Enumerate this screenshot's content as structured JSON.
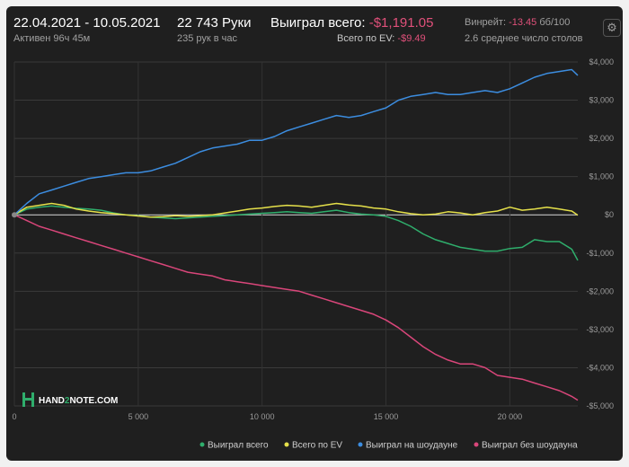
{
  "header": {
    "date_range": "22.04.2021 - 10.05.2021",
    "active": "Активен 96ч 45м",
    "hands": "22 743 Руки",
    "hands_per_hour": "235 рук в час",
    "won_total_label": "Выиграл всего:",
    "won_total_value": "-$1,191.05",
    "ev_total_label": "Всего по EV:",
    "ev_total_value": "-$9.49",
    "winrate_label": "Винрейт:",
    "winrate_value": "-13.45",
    "winrate_unit": "бб/100",
    "avg_tables": "2.6 среднее число столов"
  },
  "logo": {
    "text_a": "HAND",
    "text_b": "2",
    "text_c": "NOTE.COM"
  },
  "chart_data": {
    "type": "line",
    "xlabel": "",
    "ylabel": "",
    "xlim": [
      0,
      22743
    ],
    "ylim": [
      -5000,
      4000
    ],
    "x_ticks": [
      0,
      5000,
      10000,
      15000,
      20000
    ],
    "x_tick_labels": [
      "0",
      "5 000",
      "10 000",
      "15 000",
      "20 000"
    ],
    "y_ticks": [
      4000,
      3000,
      2000,
      1000,
      0,
      -1000,
      -2000,
      -3000,
      -4000,
      -5000
    ],
    "y_tick_labels": [
      "$4,000",
      "$3,000",
      "$2,000",
      "$1,000",
      "$0",
      "-$1,000",
      "-$2,000",
      "-$3,000",
      "-$4,000",
      "-$5,000"
    ],
    "grid": true,
    "legend_position": "bottom-right",
    "series": [
      {
        "name": "Выиграл всего",
        "color": "#2fae6c",
        "x": [
          0,
          500,
          1000,
          1500,
          2000,
          2500,
          3000,
          3500,
          4000,
          4500,
          5000,
          5500,
          6000,
          6500,
          7000,
          7500,
          8000,
          8500,
          9000,
          9500,
          10000,
          10500,
          11000,
          11500,
          12000,
          12500,
          13000,
          13500,
          14000,
          14500,
          15000,
          15500,
          16000,
          16500,
          17000,
          17500,
          18000,
          18500,
          19000,
          19500,
          20000,
          20500,
          21000,
          21500,
          22000,
          22500,
          22743
        ],
        "y": [
          0,
          150,
          200,
          230,
          200,
          170,
          150,
          120,
          50,
          0,
          -20,
          -60,
          -80,
          -100,
          -80,
          -60,
          -40,
          -20,
          0,
          20,
          40,
          60,
          80,
          60,
          40,
          80,
          120,
          60,
          20,
          0,
          -40,
          -150,
          -300,
          -500,
          -650,
          -750,
          -850,
          -900,
          -950,
          -950,
          -880,
          -850,
          -650,
          -700,
          -700,
          -900,
          -1191
        ]
      },
      {
        "name": "Всего по EV",
        "color": "#e5e04a",
        "x": [
          0,
          500,
          1000,
          1500,
          2000,
          2500,
          3000,
          3500,
          4000,
          4500,
          5000,
          5500,
          6000,
          6500,
          7000,
          7500,
          8000,
          8500,
          9000,
          9500,
          10000,
          10500,
          11000,
          11500,
          12000,
          12500,
          13000,
          13500,
          14000,
          14500,
          15000,
          15500,
          16000,
          16500,
          17000,
          17500,
          18000,
          18500,
          19000,
          19500,
          20000,
          20500,
          21000,
          21500,
          22000,
          22500,
          22743
        ],
        "y": [
          0,
          200,
          250,
          300,
          250,
          150,
          100,
          60,
          30,
          0,
          -30,
          -60,
          -50,
          -20,
          -40,
          -20,
          0,
          50,
          100,
          150,
          180,
          220,
          250,
          230,
          200,
          250,
          300,
          260,
          230,
          180,
          150,
          80,
          30,
          0,
          20,
          80,
          50,
          0,
          60,
          100,
          200,
          120,
          150,
          200,
          150,
          100,
          -9
        ]
      },
      {
        "name": "Выиграл на шоудауне",
        "color": "#3c8de0",
        "x": [
          0,
          500,
          1000,
          1500,
          2000,
          2500,
          3000,
          3500,
          4000,
          4500,
          5000,
          5500,
          6000,
          6500,
          7000,
          7500,
          8000,
          8500,
          9000,
          9500,
          10000,
          10500,
          11000,
          11500,
          12000,
          12500,
          13000,
          13500,
          14000,
          14500,
          15000,
          15500,
          16000,
          16500,
          17000,
          17500,
          18000,
          18500,
          19000,
          19500,
          20000,
          20500,
          21000,
          21500,
          22000,
          22500,
          22743
        ],
        "y": [
          0,
          300,
          550,
          650,
          750,
          850,
          950,
          1000,
          1050,
          1100,
          1100,
          1150,
          1250,
          1350,
          1500,
          1650,
          1750,
          1800,
          1850,
          1950,
          1950,
          2050,
          2200,
          2300,
          2400,
          2500,
          2600,
          2550,
          2600,
          2700,
          2800,
          3000,
          3100,
          3150,
          3200,
          3150,
          3150,
          3200,
          3250,
          3200,
          3300,
          3450,
          3600,
          3700,
          3750,
          3800,
          3650
        ]
      },
      {
        "name": "Выиграл без шоудауна",
        "color": "#d9467a",
        "x": [
          0,
          500,
          1000,
          1500,
          2000,
          2500,
          3000,
          3500,
          4000,
          4500,
          5000,
          5500,
          6000,
          6500,
          7000,
          7500,
          8000,
          8500,
          9000,
          9500,
          10000,
          10500,
          11000,
          11500,
          12000,
          12500,
          13000,
          13500,
          14000,
          14500,
          15000,
          15500,
          16000,
          16500,
          17000,
          17500,
          18000,
          18500,
          19000,
          19500,
          20000,
          20500,
          21000,
          21500,
          22000,
          22500,
          22743
        ],
        "y": [
          0,
          -150,
          -300,
          -400,
          -500,
          -600,
          -700,
          -800,
          -900,
          -1000,
          -1100,
          -1200,
          -1300,
          -1400,
          -1500,
          -1550,
          -1600,
          -1700,
          -1750,
          -1800,
          -1850,
          -1900,
          -1950,
          -2000,
          -2100,
          -2200,
          -2300,
          -2400,
          -2500,
          -2600,
          -2750,
          -2950,
          -3200,
          -3450,
          -3650,
          -3800,
          -3900,
          -3900,
          -4000,
          -4200,
          -4250,
          -4300,
          -4400,
          -4500,
          -4600,
          -4750,
          -4850
        ]
      }
    ]
  }
}
